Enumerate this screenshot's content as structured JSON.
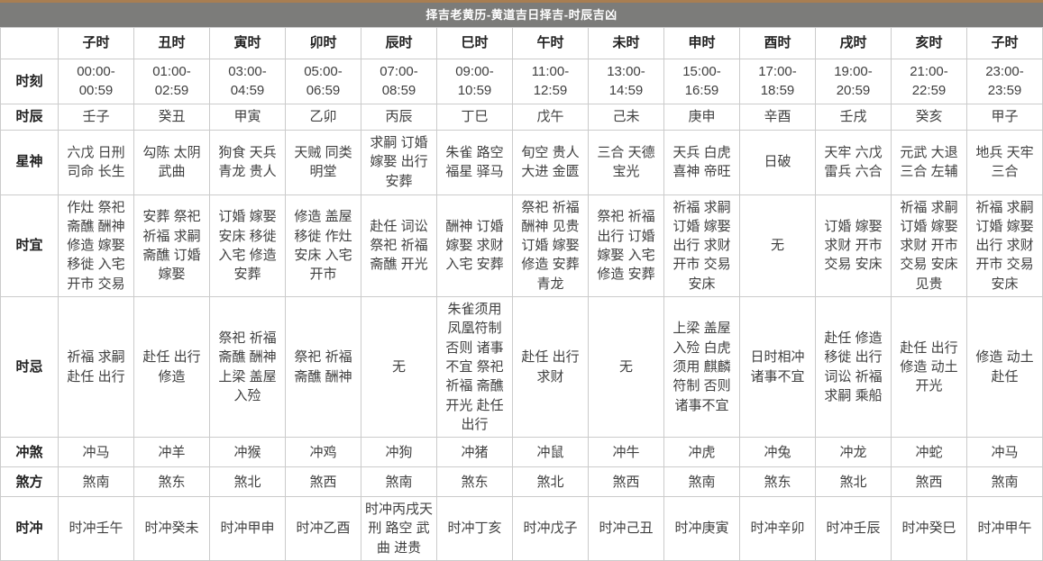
{
  "title_bar": {
    "text": "择吉老黄历-黄道吉日择吉-时辰吉凶"
  },
  "colors": {
    "top_strip": "#a87e52",
    "title_bg": "#7c7c7a",
    "title_text": "#ffffff",
    "border": "#cbcbcb",
    "text": "#3f3f3f"
  },
  "table": {
    "rows": [
      {
        "key": "time",
        "label": "时刻"
      },
      {
        "key": "ganzhi",
        "label": "时辰"
      },
      {
        "key": "xingshen",
        "label": "星神"
      },
      {
        "key": "shiyi",
        "label": "时宜"
      },
      {
        "key": "shiji",
        "label": "时忌"
      },
      {
        "key": "chongsha",
        "label": "冲煞"
      },
      {
        "key": "shafang",
        "label": "煞方"
      },
      {
        "key": "shichong",
        "label": "时冲"
      }
    ],
    "columns": [
      {
        "hour": "子时",
        "time": "00:00-00:59",
        "ganzhi": "壬子",
        "xingshen": "六戊 日刑 司命 长生",
        "shiyi": "作灶 祭祀 斋醮 酬神 修造 嫁娶 移徙 入宅 开市 交易",
        "shiji": "祈福 求嗣 赴任 出行",
        "chongsha": "冲马",
        "shafang": "煞南",
        "shichong": "时冲壬午"
      },
      {
        "hour": "丑时",
        "time": "01:00-02:59",
        "ganzhi": "癸丑",
        "xingshen": "勾陈 太阴 武曲",
        "shiyi": "安葬 祭祀 祈福 求嗣 斋醮 订婚 嫁娶",
        "shiji": "赴任 出行 修造",
        "chongsha": "冲羊",
        "shafang": "煞东",
        "shichong": "时冲癸未"
      },
      {
        "hour": "寅时",
        "time": "03:00-04:59",
        "ganzhi": "甲寅",
        "xingshen": "狗食 天兵 青龙 贵人",
        "shiyi": "订婚 嫁娶 安床 移徙 入宅 修造 安葬",
        "shiji": "祭祀 祈福 斋醮 酬神 上梁 盖屋 入殓",
        "chongsha": "冲猴",
        "shafang": "煞北",
        "shichong": "时冲甲申"
      },
      {
        "hour": "卯时",
        "time": "05:00-06:59",
        "ganzhi": "乙卯",
        "xingshen": "天贼 同类 明堂",
        "shiyi": "修造 盖屋 移徙 作灶 安床 入宅 开市",
        "shiji": "祭祀 祈福 斋醮 酬神",
        "chongsha": "冲鸡",
        "shafang": "煞西",
        "shichong": "时冲乙酉"
      },
      {
        "hour": "辰时",
        "time": "07:00-08:59",
        "ganzhi": "丙辰",
        "xingshen": "求嗣 订婚 嫁娶 出行 安葬",
        "shiyi": "赴任 词讼 祭祀 祈福 斋醮 开光",
        "shiji": "无",
        "chongsha": "冲狗",
        "shafang": "煞南",
        "shichong": "时冲丙戌天刑 路空 武曲 进贵"
      },
      {
        "hour": "巳时",
        "time": "09:00-10:59",
        "ganzhi": "丁巳",
        "xingshen": "朱雀 路空 福星 驿马",
        "shiyi": "酬神 订婚 嫁娶 求财 入宅 安葬",
        "shiji": "朱雀须用 凤凰符制 否则 诸事 不宜 祭祀 祈福 斋醮 开光 赴任 出行",
        "chongsha": "冲猪",
        "shafang": "煞东",
        "shichong": "时冲丁亥"
      },
      {
        "hour": "午时",
        "time": "11:00-12:59",
        "ganzhi": "戊午",
        "xingshen": "旬空 贵人 大进 金匮",
        "shiyi": "祭祀 祈福 酬神 见贵 订婚 嫁娶 修造 安葬 青龙",
        "shiji": "赴任 出行 求财",
        "chongsha": "冲鼠",
        "shafang": "煞北",
        "shichong": "时冲戊子"
      },
      {
        "hour": "未时",
        "time": "13:00-14:59",
        "ganzhi": "己未",
        "xingshen": "三合 天德 宝光",
        "shiyi": "祭祀 祈福 出行 订婚 嫁娶 入宅 修造 安葬",
        "shiji": "无",
        "chongsha": "冲牛",
        "shafang": "煞西",
        "shichong": "时冲己丑"
      },
      {
        "hour": "申时",
        "time": "15:00-16:59",
        "ganzhi": "庚申",
        "xingshen": "天兵 白虎 喜神 帝旺",
        "shiyi": "祈福 求嗣 订婚 嫁娶 出行 求财 开市 交易 安床",
        "shiji": "上梁 盖屋 入殓 白虎 须用 麒麟 符制 否则 诸事不宜",
        "chongsha": "冲虎",
        "shafang": "煞南",
        "shichong": "时冲庚寅"
      },
      {
        "hour": "酉时",
        "time": "17:00-18:59",
        "ganzhi": "辛酉",
        "xingshen": "日破",
        "shiyi": "无",
        "shiji": "日时相冲 诸事不宜",
        "chongsha": "冲兔",
        "shafang": "煞东",
        "shichong": "时冲辛卯"
      },
      {
        "hour": "戌时",
        "time": "19:00-20:59",
        "ganzhi": "壬戌",
        "xingshen": "天牢 六戊 雷兵 六合",
        "shiyi": "订婚 嫁娶 求财 开市 交易 安床",
        "shiji": "赴任 修造 移徙 出行 词讼 祈福 求嗣 乘船",
        "chongsha": "冲龙",
        "shafang": "煞北",
        "shichong": "时冲壬辰"
      },
      {
        "hour": "亥时",
        "time": "21:00-22:59",
        "ganzhi": "癸亥",
        "xingshen": "元武 大退 三合 左辅",
        "shiyi": "祈福 求嗣 订婚 嫁娶 求财 开市 交易 安床 见贵",
        "shiji": "赴任 出行 修造 动土 开光",
        "chongsha": "冲蛇",
        "shafang": "煞西",
        "shichong": "时冲癸巳"
      },
      {
        "hour": "子时",
        "time": "23:00-23:59",
        "ganzhi": "甲子",
        "xingshen": "地兵 天牢 三合",
        "shiyi": "祈福 求嗣 订婚 嫁娶 出行 求财 开市 交易 安床",
        "shiji": "修造 动土 赴任",
        "chongsha": "冲马",
        "shafang": "煞南",
        "shichong": "时冲甲午"
      }
    ]
  }
}
